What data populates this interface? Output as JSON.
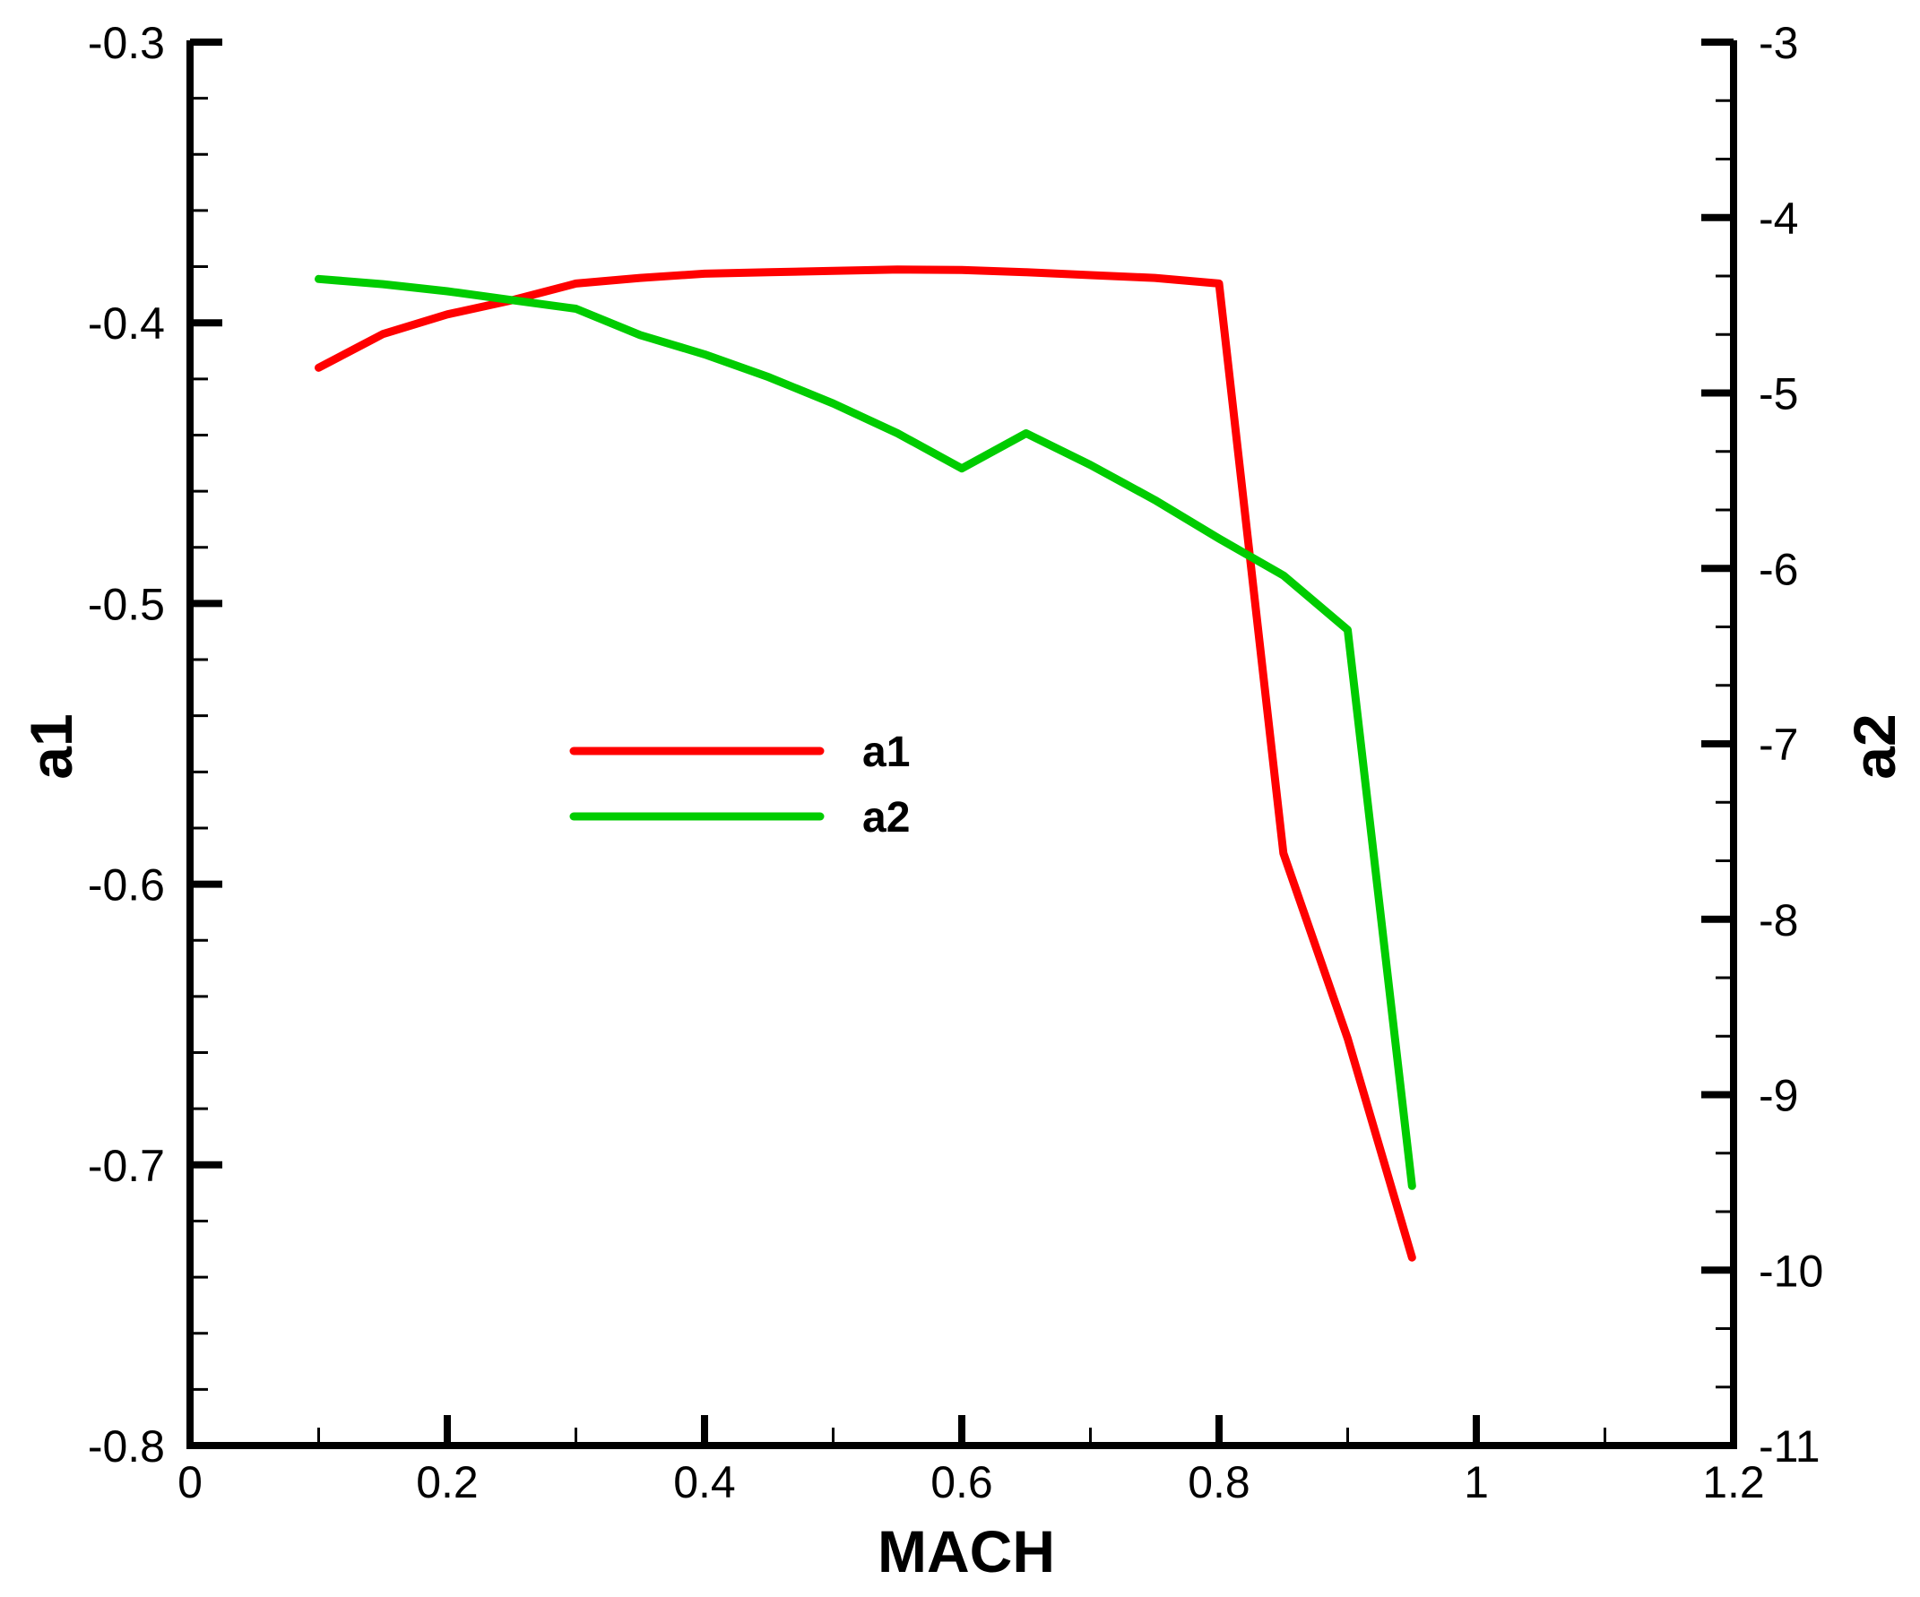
{
  "chart_data": {
    "type": "line",
    "xlabel": "MACH",
    "ylabel": "a1",
    "y2label": "a2",
    "xlim": [
      0,
      1.2
    ],
    "ylim": [
      -0.8,
      -0.3
    ],
    "y2lim": [
      -11,
      -3
    ],
    "x_ticks": [
      0,
      0.2,
      0.4,
      0.6,
      0.8,
      1,
      1.2
    ],
    "x_tick_labels": [
      "0",
      "0.2",
      "0.4",
      "0.6",
      "0.8",
      "1",
      "1.2"
    ],
    "y_ticks": [
      -0.8,
      -0.7,
      -0.6,
      -0.5,
      -0.4,
      -0.3
    ],
    "y_tick_labels": [
      "-0.8",
      "-0.7",
      "-0.6",
      "-0.5",
      "-0.4",
      "-0.3"
    ],
    "y2_ticks": [
      -11,
      -10,
      -9,
      -8,
      -7,
      -6,
      -5,
      -4,
      -3
    ],
    "y2_tick_labels": [
      "-11",
      "-10",
      "-9",
      "-8",
      "-7",
      "-6",
      "-5",
      "-4",
      "-3"
    ],
    "grid": false,
    "legend_position": "center-left",
    "series": [
      {
        "name": "a1",
        "axis": "left",
        "color": "#ff0000",
        "x": [
          0.1,
          0.15,
          0.2,
          0.25,
          0.3,
          0.35,
          0.4,
          0.45,
          0.5,
          0.55,
          0.6,
          0.65,
          0.7,
          0.75,
          0.8,
          0.85,
          0.9,
          0.95
        ],
        "y": [
          -0.416,
          -0.404,
          -0.397,
          -0.392,
          -0.386,
          -0.384,
          -0.3825,
          -0.382,
          -0.3815,
          -0.381,
          -0.3812,
          -0.382,
          -0.383,
          -0.384,
          -0.386,
          -0.589,
          -0.655,
          -0.733
        ]
      },
      {
        "name": "a2",
        "axis": "right",
        "color": "#00cc00",
        "x": [
          0.1,
          0.15,
          0.2,
          0.25,
          0.3,
          0.35,
          0.4,
          0.45,
          0.5,
          0.55,
          0.6,
          0.65,
          0.7,
          0.75,
          0.8,
          0.85,
          0.9,
          0.95
        ],
        "y": [
          -4.35,
          -4.38,
          -4.42,
          -4.47,
          -4.52,
          -4.67,
          -4.78,
          -4.91,
          -5.06,
          -5.23,
          -5.43,
          -5.23,
          -5.41,
          -5.61,
          -5.83,
          -6.04,
          -6.35,
          -9.52
        ]
      }
    ]
  }
}
